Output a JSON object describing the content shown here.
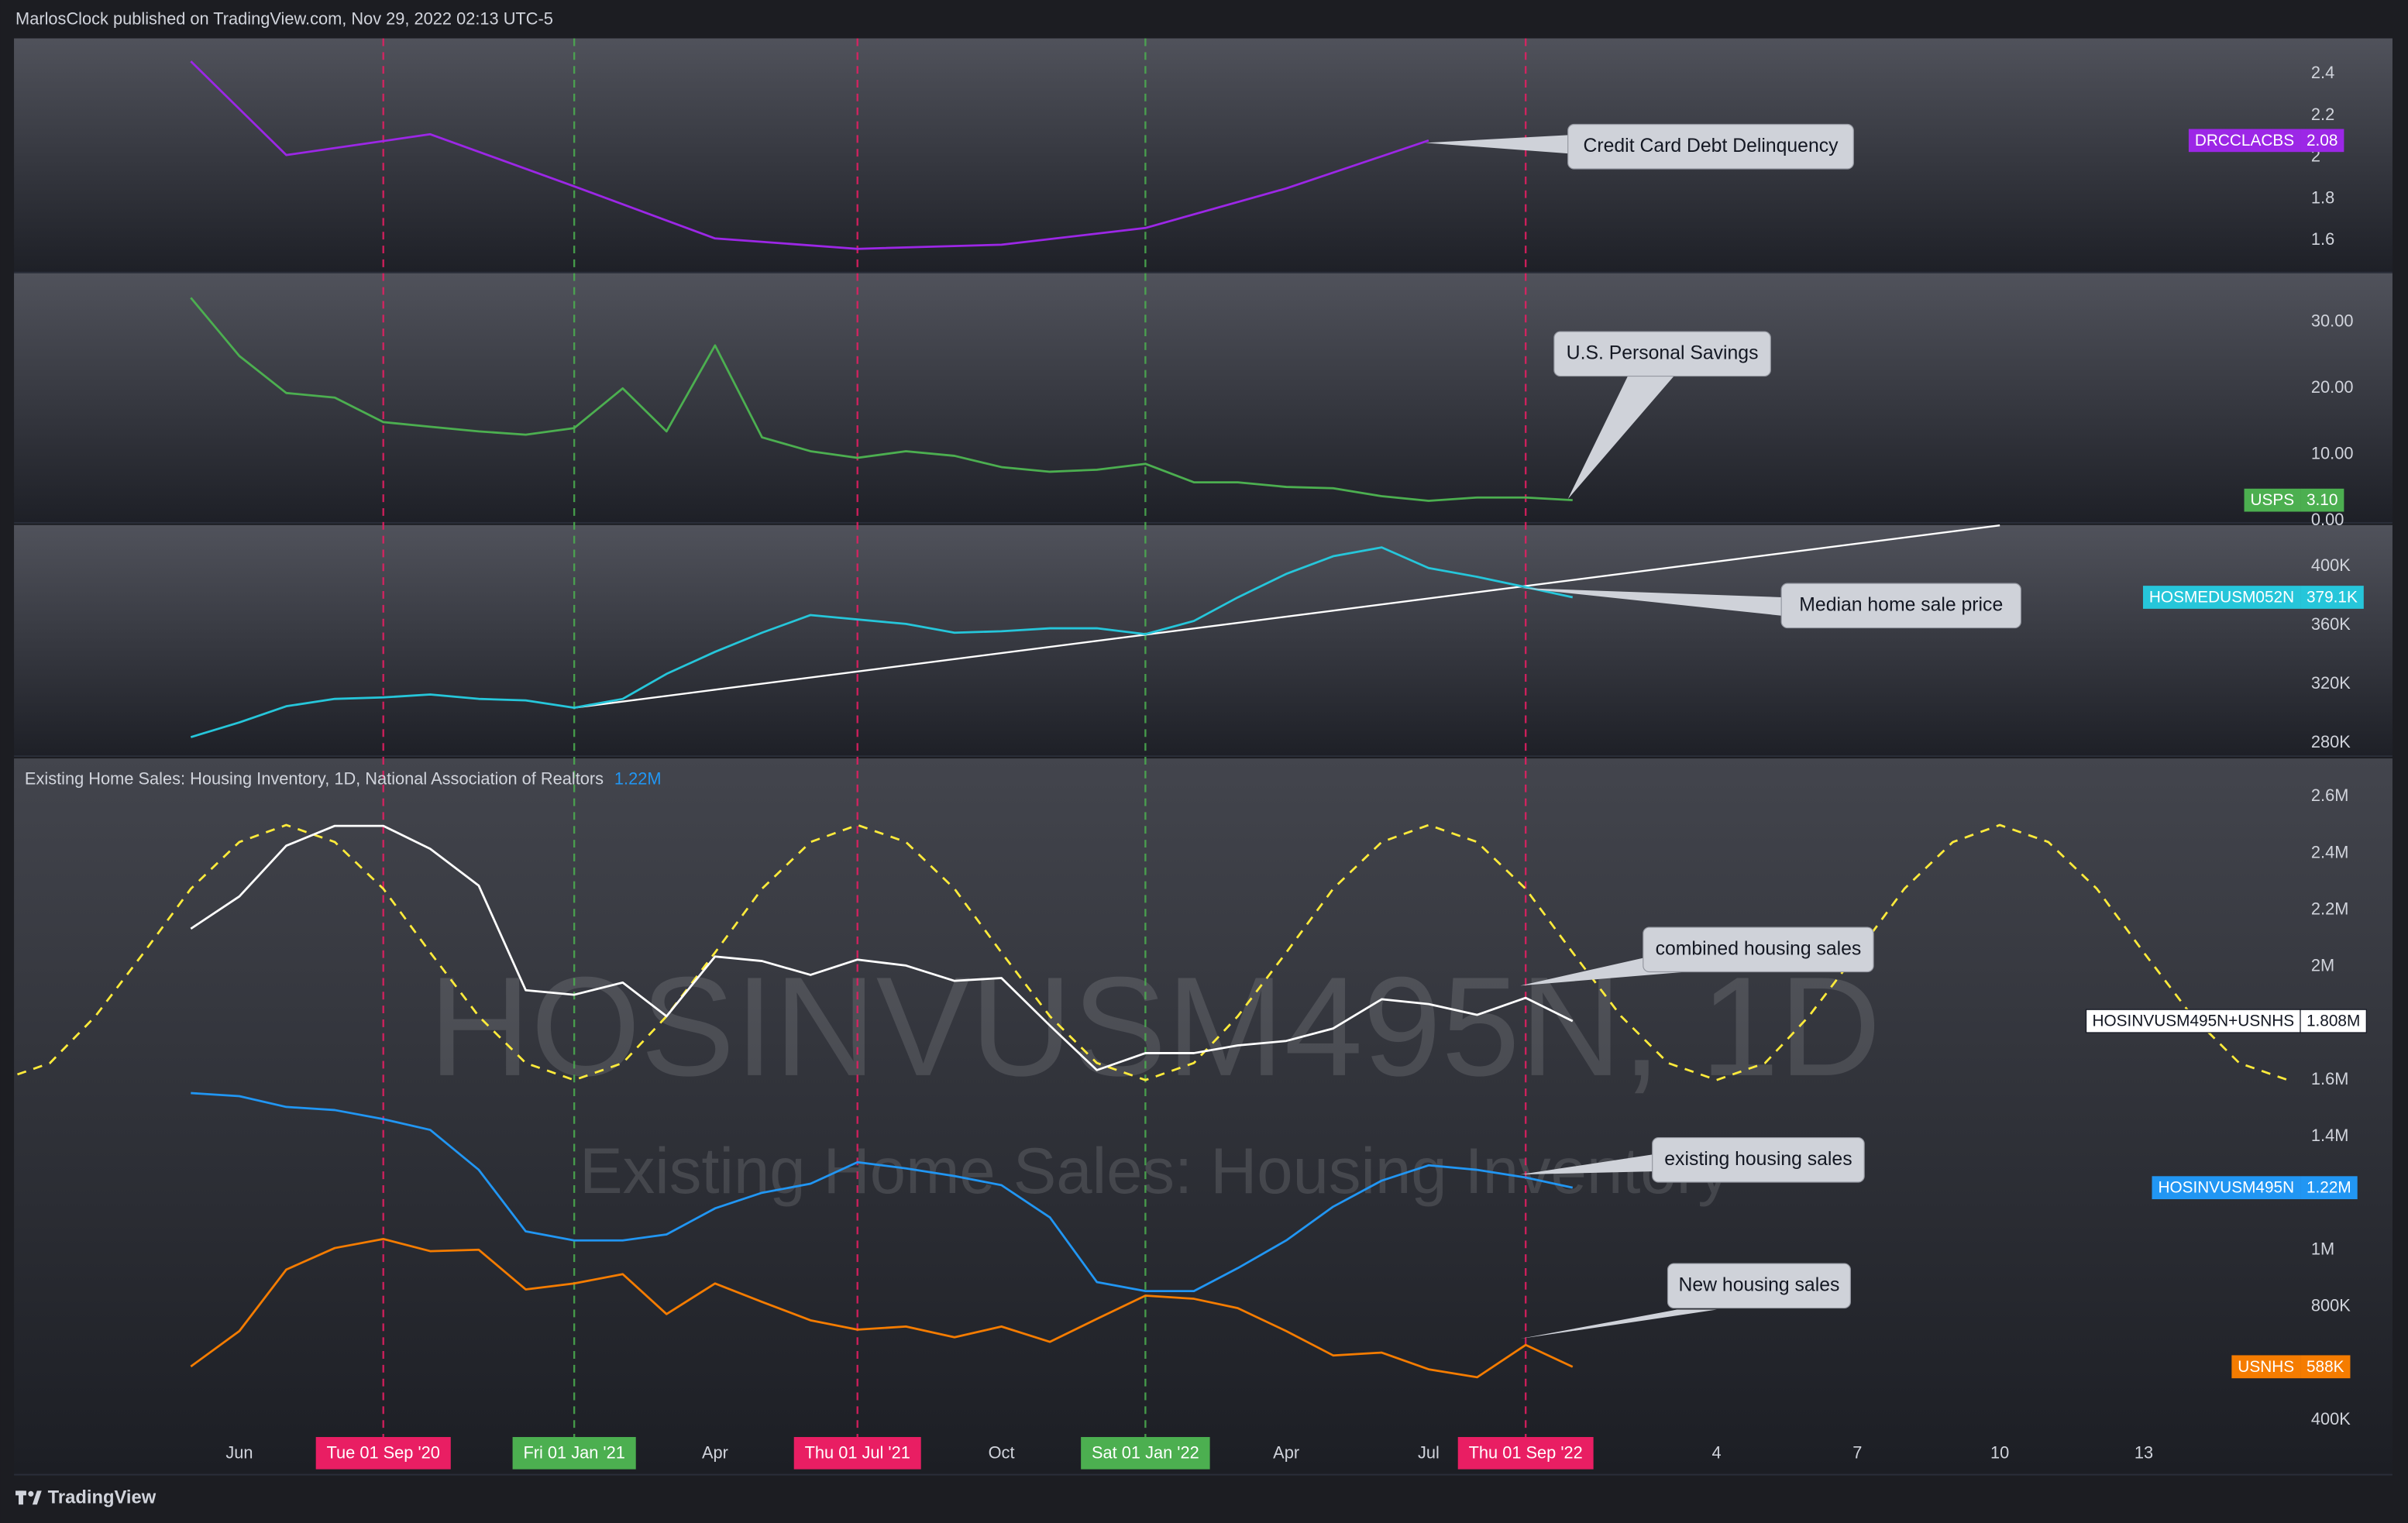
{
  "header": {
    "publisher": "MarlosClock published on TradingView.com, Nov 29, 2022 02:13 UTC-5"
  },
  "footer": {
    "logo": "TradingView"
  },
  "chart_data": [
    {
      "type": "line",
      "x": [
        "2020-05",
        "2020-07",
        "2020-10",
        "2021-01",
        "2021-04",
        "2021-07",
        "2021-10",
        "2022-01",
        "2022-04",
        "2022-07"
      ],
      "xlim": [
        "2020-01-09",
        "2024-01-11"
      ],
      "ylim": [
        1.45,
        2.57
      ],
      "yticks": [
        1.6,
        1.8,
        2,
        2.2,
        2.4
      ],
      "series": [
        {
          "name": "DRCCLACBS",
          "color": "#9c27e6",
          "values": [
            2.46,
            2.01,
            2.11,
            1.86,
            1.61,
            1.56,
            1.58,
            1.66,
            1.85,
            2.08
          ],
          "value_labels": [
            null,
            null,
            null,
            null,
            null,
            null,
            null,
            null,
            null,
            "2.08"
          ],
          "annotation": "Credit Card Debt Delinquency"
        }
      ]
    },
    {
      "type": "line",
      "x": [
        "2020-05",
        "2020-06",
        "2020-07",
        "2020-08",
        "2020-09",
        "2020-10",
        "2020-11",
        "2020-12",
        "2021-01",
        "2021-02",
        "2021-03",
        "2021-04",
        "2021-05",
        "2021-06",
        "2021-07",
        "2021-08",
        "2021-09",
        "2021-10",
        "2021-11",
        "2021-12",
        "2022-01",
        "2022-02",
        "2022-03",
        "2022-04",
        "2022-05",
        "2022-06",
        "2022-07",
        "2022-08",
        "2022-09",
        "2022-10"
      ],
      "xlim": [
        "2020-01-09",
        "2024-01-11"
      ],
      "ylim": [
        -0.2,
        37.4
      ],
      "yticks": [
        {
          "value": 0,
          "label": "0.00"
        },
        {
          "value": 10,
          "label": "10.00"
        },
        {
          "value": 20,
          "label": "20.00"
        },
        {
          "value": 30,
          "label": "30.00"
        }
      ],
      "series": [
        {
          "name": "USPS",
          "color": "#4caf50",
          "values": [
            33.7,
            24.9,
            19.3,
            18.6,
            14.9,
            14.2,
            13.5,
            13.0,
            14.0,
            20.0,
            13.5,
            26.5,
            12.6,
            10.5,
            9.5,
            10.5,
            9.8,
            8.1,
            7.4,
            7.7,
            8.6,
            5.8,
            5.8,
            5.1,
            4.9,
            3.7,
            3.0,
            3.5,
            3.5,
            3.1
          ],
          "value_labels": [
            null,
            null,
            null,
            null,
            null,
            null,
            null,
            null,
            null,
            null,
            null,
            null,
            null,
            null,
            null,
            null,
            null,
            null,
            null,
            null,
            null,
            null,
            null,
            null,
            null,
            null,
            null,
            null,
            null,
            "3.10"
          ],
          "annotation": "U.S. Personal Savings"
        }
      ]
    },
    {
      "type": "line",
      "x": [
        "2020-05",
        "2020-06",
        "2020-07",
        "2020-08",
        "2020-09",
        "2020-10",
        "2020-11",
        "2020-12",
        "2021-01",
        "2021-02",
        "2021-03",
        "2021-04",
        "2021-05",
        "2021-06",
        "2021-07",
        "2021-08",
        "2021-09",
        "2021-10",
        "2021-11",
        "2021-12",
        "2022-01",
        "2022-02",
        "2022-03",
        "2022-04",
        "2022-05",
        "2022-06",
        "2022-07",
        "2022-08",
        "2022-09",
        "2022-10"
      ],
      "xlim": [
        "2020-01-09",
        "2024-01-11"
      ],
      "ylim": [
        271600,
        428200
      ],
      "yticks": [
        {
          "value": 280000,
          "label": "280K"
        },
        {
          "value": 320000,
          "label": "320K"
        },
        {
          "value": 360000,
          "label": "360K"
        },
        {
          "value": 400000,
          "label": "400K"
        }
      ],
      "series": [
        {
          "name": "HOSMEDUSM052N",
          "color": "#26c6da",
          "values": [
            284000,
            294000,
            305000,
            310000,
            311000,
            313000,
            310000,
            309000,
            304000,
            310000,
            327000,
            342000,
            355000,
            367000,
            364000,
            361000,
            355000,
            356000,
            358000,
            358000,
            354000,
            363000,
            379000,
            395000,
            407000,
            413000,
            399000,
            393000,
            386000,
            379100
          ],
          "value_labels": [
            null,
            null,
            null,
            null,
            null,
            null,
            null,
            null,
            null,
            null,
            null,
            null,
            null,
            null,
            null,
            null,
            null,
            null,
            null,
            null,
            null,
            null,
            null,
            null,
            null,
            null,
            null,
            null,
            null,
            "379.1K"
          ],
          "annotation": "Median home sale price"
        }
      ],
      "trendline": {
        "color": "#ffffff",
        "x": [
          "2021-01-01",
          "2023-07-01"
        ],
        "values": [
          304000,
          428000
        ]
      }
    },
    {
      "type": "line",
      "legend_title": "Existing Home Sales: Housing Inventory, 1D, National Association of Realtors",
      "watermark": {
        "symbol": "HOSINVUSM495N, 1D",
        "description": "Existing Home Sales: Housing Inventory"
      },
      "x": [
        "2020-05",
        "2020-06",
        "2020-07",
        "2020-08",
        "2020-09",
        "2020-10",
        "2020-11",
        "2020-12",
        "2021-01",
        "2021-02",
        "2021-03",
        "2021-04",
        "2021-05",
        "2021-06",
        "2021-07",
        "2021-08",
        "2021-09",
        "2021-10",
        "2021-11",
        "2021-12",
        "2022-01",
        "2022-02",
        "2022-03",
        "2022-04",
        "2022-05",
        "2022-06",
        "2022-07",
        "2022-08",
        "2022-09",
        "2022-10"
      ],
      "xlim": [
        "2020-01-09",
        "2024-01-11"
      ],
      "ylim": [
        210000,
        2735000
      ],
      "yticks": [
        {
          "value": 400000,
          "label": "400K"
        },
        {
          "value": 800000,
          "label": "800K"
        },
        {
          "value": 1000000,
          "label": "1M"
        },
        {
          "value": 1400000,
          "label": "1.4M"
        },
        {
          "value": 1600000,
          "label": "1.6M"
        },
        {
          "value": 2000000,
          "label": "2M"
        },
        {
          "value": 2200000,
          "label": "2.2M"
        },
        {
          "value": 2400000,
          "label": "2.4M"
        },
        {
          "value": 2600000,
          "label": "2.6M"
        }
      ],
      "xticks": [
        {
          "value": "2020-06",
          "label": "Jun"
        },
        {
          "value": "2020-09",
          "label": "Tue 01 Sep '20",
          "color": "#e91e63"
        },
        {
          "value": "2021-01",
          "label": "Fri 01 Jan '21",
          "color": "#4caf50"
        },
        {
          "value": "2021-04",
          "label": "Apr"
        },
        {
          "value": "2021-07",
          "label": "Thu 01 Jul '21",
          "color": "#e91e63"
        },
        {
          "value": "2021-10",
          "label": "Oct"
        },
        {
          "value": "2022-01",
          "label": "Sat 01 Jan '22",
          "color": "#4caf50"
        },
        {
          "value": "2022-04",
          "label": "Apr"
        },
        {
          "value": "2022-07",
          "label": "Jul"
        },
        {
          "value": "2022-09",
          "label": "Thu 01 Sep '22",
          "color": "#e91e63"
        },
        {
          "value": "2023-01",
          "label": "4"
        },
        {
          "value": "2023-04",
          "label": "7"
        },
        {
          "value": "2023-07",
          "label": "10"
        },
        {
          "value": "2023-10",
          "label": "13"
        }
      ],
      "series": [
        {
          "color": "#ffeb3b",
          "dashed": true,
          "x": [
            "2020-01",
            "2020-02",
            "2020-03",
            "2020-04",
            "2020-05",
            "2020-06",
            "2020-07",
            "2020-08",
            "2020-09",
            "2020-10",
            "2020-11",
            "2020-12",
            "2021-01",
            "2021-02",
            "2021-03",
            "2021-04",
            "2021-05",
            "2021-06",
            "2021-07",
            "2021-08",
            "2021-09",
            "2021-10",
            "2021-11",
            "2021-12",
            "2022-01",
            "2022-02",
            "2022-03",
            "2022-04",
            "2022-05",
            "2022-06",
            "2022-07",
            "2022-08",
            "2022-09",
            "2022-10",
            "2022-11",
            "2022-12",
            "2023-01",
            "2023-02",
            "2023-03",
            "2023-04",
            "2023-05",
            "2023-06",
            "2023-07",
            "2023-08",
            "2023-09",
            "2023-10",
            "2023-11",
            "2023-12",
            "2024-01"
          ],
          "values": [
            1600000,
            1660000,
            1825000,
            2050000,
            2275000,
            2440000,
            2500000,
            2440000,
            2275000,
            2050000,
            1825000,
            1660000,
            1600000,
            1660000,
            1825000,
            2050000,
            2275000,
            2440000,
            2500000,
            2440000,
            2275000,
            2050000,
            1825000,
            1660000,
            1600000,
            1660000,
            1825000,
            2050000,
            2275000,
            2440000,
            2500000,
            2440000,
            2275000,
            2050000,
            1825000,
            1660000,
            1600000,
            1660000,
            1825000,
            2050000,
            2275000,
            2440000,
            2500000,
            2440000,
            2275000,
            2050000,
            1825000,
            1660000,
            1600000
          ]
        },
        {
          "name": "HOSINVUSM495N+USNHS",
          "color": "#ffffff",
          "values": [
            2134000,
            2248000,
            2427000,
            2497000,
            2497000,
            2416000,
            2286000,
            1917000,
            1901000,
            1944000,
            1825000,
            2036000,
            2020000,
            1971000,
            2025000,
            2004000,
            1950000,
            1960000,
            1792000,
            1635000,
            1695000,
            1695000,
            1722000,
            1738000,
            1782000,
            1885000,
            1868000,
            1830000,
            1890000,
            1808000
          ],
          "value_labels": [
            null,
            null,
            null,
            null,
            null,
            null,
            null,
            null,
            null,
            null,
            null,
            null,
            null,
            null,
            null,
            null,
            null,
            null,
            null,
            null,
            null,
            null,
            null,
            null,
            null,
            null,
            null,
            null,
            null,
            "1.808M"
          ],
          "annotation": "combined housing sales"
        },
        {
          "name": "HOSINVUSM495N",
          "color": "#2196f3",
          "values": [
            1554000,
            1543000,
            1505000,
            1494000,
            1462000,
            1424000,
            1283000,
            1066000,
            1034000,
            1034000,
            1055000,
            1147000,
            1202000,
            1234000,
            1310000,
            1288000,
            1261000,
            1229000,
            1115000,
            887000,
            855000,
            855000,
            936000,
            1034000,
            1153000,
            1245000,
            1299000,
            1283000,
            1256000,
            1220000
          ],
          "value_labels": [
            null,
            null,
            null,
            null,
            null,
            null,
            null,
            null,
            null,
            null,
            null,
            null,
            null,
            null,
            null,
            null,
            null,
            null,
            null,
            null,
            null,
            null,
            null,
            null,
            null,
            null,
            null,
            null,
            null,
            "1.22M"
          ],
          "annotation": "existing housing sales"
        },
        {
          "name": "USNHS",
          "color": "#f57c00",
          "values": [
            589000,
            714000,
            931000,
            1007000,
            1039000,
            996000,
            1001000,
            861000,
            882000,
            915000,
            774000,
            882000,
            817000,
            752000,
            719000,
            730000,
            692000,
            730000,
            676000,
            757000,
            839000,
            828000,
            795000,
            714000,
            628000,
            638000,
            579000,
            551000,
            665000,
            588000
          ],
          "value_labels": [
            null,
            null,
            null,
            null,
            null,
            null,
            null,
            null,
            null,
            null,
            null,
            null,
            null,
            null,
            null,
            null,
            null,
            null,
            null,
            null,
            null,
            null,
            null,
            null,
            null,
            null,
            null,
            null,
            null,
            "588K"
          ],
          "annotation": "New housing sales"
        }
      ]
    }
  ]
}
